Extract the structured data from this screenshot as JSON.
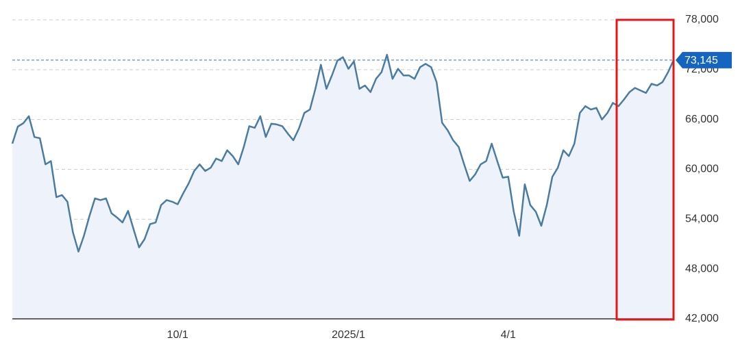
{
  "chart_data": {
    "type": "area",
    "categories": [
      null,
      null,
      null,
      null,
      null,
      null,
      null,
      null,
      null,
      null,
      null,
      null,
      null,
      null,
      null,
      null,
      null,
      null,
      null,
      null,
      null,
      null,
      null,
      null,
      null,
      null,
      null,
      null,
      null,
      null,
      "10/1",
      null,
      null,
      null,
      null,
      null,
      null,
      null,
      null,
      null,
      null,
      null,
      null,
      null,
      null,
      null,
      null,
      null,
      null,
      null,
      null,
      null,
      null,
      null,
      null,
      null,
      null,
      null,
      null,
      null,
      null,
      "2025/1",
      null,
      null,
      null,
      null,
      null,
      null,
      null,
      null,
      null,
      null,
      null,
      null,
      null,
      null,
      null,
      null,
      null,
      null,
      null,
      null,
      null,
      null,
      null,
      null,
      null,
      null,
      null,
      null,
      "4/1",
      null,
      null,
      null,
      null,
      null,
      null,
      null,
      null,
      null,
      null,
      null,
      null,
      null,
      null,
      null,
      null,
      null,
      null,
      null,
      null,
      null,
      null,
      null,
      null,
      null,
      null,
      null,
      null,
      null,
      null
    ],
    "values": [
      63100,
      65150,
      65560,
      66400,
      63900,
      63750,
      60600,
      61000,
      56650,
      56900,
      56100,
      52400,
      50100,
      52000,
      54400,
      56500,
      56300,
      56500,
      54700,
      54200,
      53600,
      55000,
      52800,
      50600,
      51600,
      53400,
      53600,
      55700,
      56300,
      56100,
      55800,
      57100,
      58300,
      59800,
      60600,
      59800,
      60200,
      61300,
      61000,
      62300,
      61600,
      60600,
      62700,
      65200,
      65000,
      66400,
      63900,
      65500,
      65400,
      65200,
      64300,
      63500,
      64900,
      66800,
      67200,
      69700,
      72600,
      69700,
      71300,
      73100,
      73500,
      72100,
      73000,
      69700,
      70100,
      69300,
      70900,
      71700,
      73800,
      70900,
      72100,
      71300,
      71300,
      70900,
      72300,
      72700,
      72300,
      70500,
      65600,
      64700,
      63500,
      62700,
      60600,
      58600,
      59400,
      60600,
      61000,
      63100,
      61000,
      59000,
      59100,
      54900,
      52000,
      58200,
      55700,
      54900,
      53200,
      55700,
      59100,
      60200,
      62300,
      61600,
      63100,
      66800,
      67600,
      67200,
      67400,
      66000,
      66800,
      68000,
      67600,
      68400,
      69300,
      69800,
      69500,
      69200,
      70300,
      70100,
      70500,
      71700,
      73145
    ],
    "color": "#4a7ba0",
    "ylim": [
      42000,
      78000
    ],
    "yticks": [
      {
        "value": 42000,
        "label": "42,000"
      },
      {
        "value": 48000,
        "label": "48,000"
      },
      {
        "value": 54000,
        "label": "54,000"
      },
      {
        "value": 60000,
        "label": "60,000"
      },
      {
        "value": 66000,
        "label": "66,000"
      },
      {
        "value": 72000,
        "label": "72,000"
      },
      {
        "value": 78000,
        "label": "78,000"
      }
    ],
    "last_value": {
      "value": 73145,
      "label": "73,145"
    },
    "grid": true
  }
}
